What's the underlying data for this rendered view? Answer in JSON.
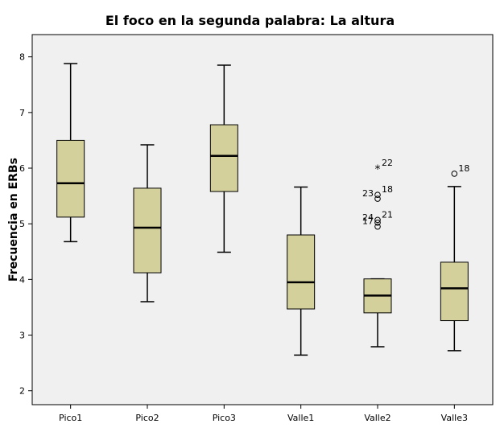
{
  "chart_data": {
    "type": "boxplot",
    "title": "El foco en la segunda palabra: La altura",
    "xlabel": "",
    "ylabel": "Frecuencia en ERBs",
    "ylim": [
      1.75,
      8.4
    ],
    "yticks": [
      2,
      3,
      4,
      5,
      6,
      7,
      8
    ],
    "categories": [
      "Pico1",
      "Pico2",
      "Pico3",
      "Valle1",
      "Valle2",
      "Valle3"
    ],
    "boxes": [
      {
        "name": "Pico1",
        "min": 4.68,
        "q1": 5.12,
        "median": 5.73,
        "q3": 6.5,
        "max": 7.88,
        "outliers": []
      },
      {
        "name": "Pico2",
        "min": 3.6,
        "q1": 4.12,
        "median": 4.93,
        "q3": 5.64,
        "max": 6.42,
        "outliers": []
      },
      {
        "name": "Pico3",
        "min": 4.49,
        "q1": 5.58,
        "median": 6.22,
        "q3": 6.78,
        "max": 7.85,
        "outliers": []
      },
      {
        "name": "Valle1",
        "min": 2.64,
        "q1": 3.47,
        "median": 3.95,
        "q3": 4.8,
        "max": 5.66,
        "outliers": []
      },
      {
        "name": "Valle2",
        "min": 2.79,
        "q1": 3.4,
        "median": 3.71,
        "q3": 4.01,
        "max": 4.01,
        "outliers": [
          {
            "label": "22",
            "value": 6.0,
            "marker": "star"
          },
          {
            "label": "18",
            "value": 5.52,
            "marker": "circle"
          },
          {
            "label": "23",
            "value": 5.45,
            "marker": "circle"
          },
          {
            "label": "21",
            "value": 5.07,
            "marker": "circle"
          },
          {
            "label": "24",
            "value": 5.02,
            "marker": "circle"
          },
          {
            "label": "17",
            "value": 4.95,
            "marker": "circle"
          }
        ]
      },
      {
        "name": "Valle3",
        "min": 2.72,
        "q1": 3.26,
        "median": 3.84,
        "q3": 4.31,
        "max": 5.67,
        "outliers": [
          {
            "label": "18",
            "value": 5.9,
            "marker": "circle"
          }
        ]
      }
    ],
    "colors": {
      "box_fill": "#d4d09b",
      "plot_bg": "#f0f0f0",
      "stroke": "#000000"
    },
    "grid": false
  }
}
